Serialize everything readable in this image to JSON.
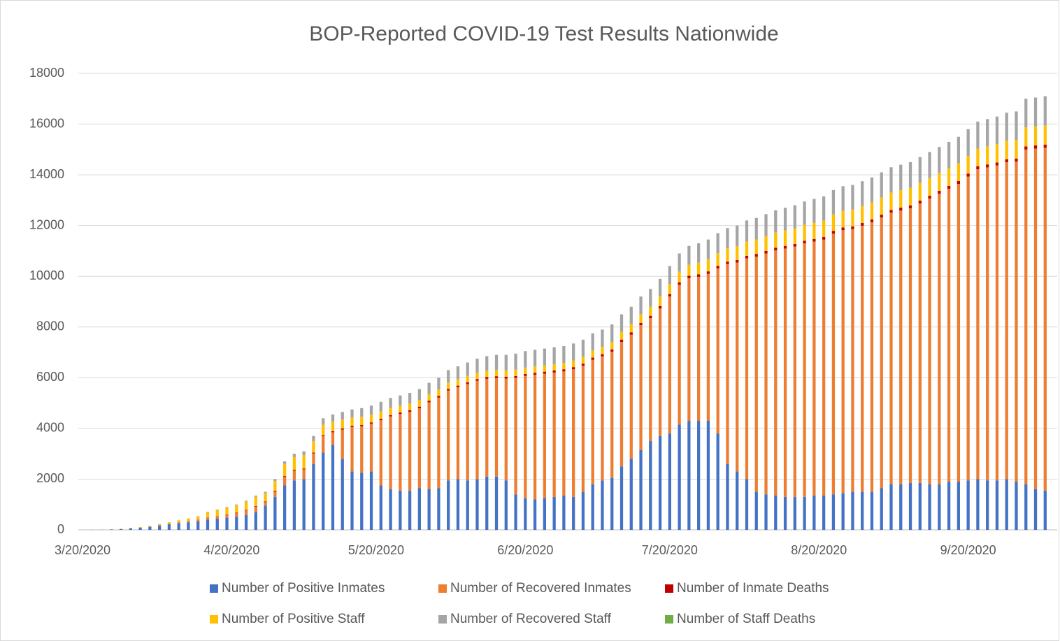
{
  "chart_data": {
    "type": "bar",
    "stacked": true,
    "title": "BOP-Reported COVID-19 Test Results Nationwide",
    "x": [
      "3/20/2020",
      "3/22/2020",
      "3/24/2020",
      "3/26/2020",
      "3/28/2020",
      "3/30/2020",
      "4/1/2020",
      "4/3/2020",
      "4/5/2020",
      "4/7/2020",
      "4/9/2020",
      "4/11/2020",
      "4/13/2020",
      "4/15/2020",
      "4/17/2020",
      "4/19/2020",
      "4/21/2020",
      "4/23/2020",
      "4/25/2020",
      "4/27/2020",
      "4/29/2020",
      "5/1/2020",
      "5/3/2020",
      "5/5/2020",
      "5/7/2020",
      "5/9/2020",
      "5/11/2020",
      "5/13/2020",
      "5/15/2020",
      "5/17/2020",
      "5/19/2020",
      "5/21/2020",
      "5/23/2020",
      "5/25/2020",
      "5/27/2020",
      "5/29/2020",
      "5/31/2020",
      "6/2/2020",
      "6/4/2020",
      "6/6/2020",
      "6/8/2020",
      "6/10/2020",
      "6/12/2020",
      "6/14/2020",
      "6/16/2020",
      "6/18/2020",
      "6/20/2020",
      "6/22/2020",
      "6/24/2020",
      "6/26/2020",
      "6/28/2020",
      "6/30/2020",
      "7/2/2020",
      "7/4/2020",
      "7/6/2020",
      "7/8/2020",
      "7/10/2020",
      "7/12/2020",
      "7/14/2020",
      "7/16/2020",
      "7/18/2020",
      "7/20/2020",
      "7/22/2020",
      "7/24/2020",
      "7/26/2020",
      "7/28/2020",
      "7/30/2020",
      "8/1/2020",
      "8/3/2020",
      "8/5/2020",
      "8/7/2020",
      "8/9/2020",
      "8/11/2020",
      "8/13/2020",
      "8/15/2020",
      "8/17/2020",
      "8/19/2020",
      "8/21/2020",
      "8/23/2020",
      "8/25/2020",
      "8/27/2020",
      "8/29/2020",
      "8/31/2020",
      "9/2/2020",
      "9/4/2020",
      "9/6/2020",
      "9/8/2020",
      "9/10/2020",
      "9/12/2020",
      "9/14/2020",
      "9/16/2020",
      "9/18/2020",
      "9/20/2020",
      "9/22/2020",
      "9/24/2020",
      "9/26/2020",
      "9/28/2020",
      "9/30/2020",
      "10/2/2020",
      "10/4/2020",
      "10/6/2020"
    ],
    "xticks": [
      "3/20/2020",
      "4/20/2020",
      "5/20/2020",
      "6/20/2020",
      "7/20/2020",
      "8/20/2020",
      "9/20/2020"
    ],
    "ylim": [
      0,
      18000
    ],
    "yticks": [
      0,
      2000,
      4000,
      6000,
      8000,
      10000,
      12000,
      14000,
      16000,
      18000
    ],
    "grid": true,
    "legend": "bottom",
    "series": [
      {
        "name": "Number of Positive Inmates",
        "color": "#4472c4",
        "values": [
          0,
          3,
          6,
          15,
          30,
          60,
          85,
          120,
          170,
          220,
          265,
          300,
          340,
          400,
          440,
          480,
          520,
          580,
          700,
          950,
          1300,
          1750,
          1950,
          2000,
          2600,
          3050,
          3350,
          2800,
          2300,
          2250,
          2300,
          1750,
          1600,
          1550,
          1550,
          1650,
          1600,
          1650,
          1950,
          2000,
          1950,
          2000,
          2100,
          2100,
          1950,
          1400,
          1250,
          1200,
          1250,
          1300,
          1350,
          1300,
          1500,
          1800,
          1950,
          2050,
          2500,
          2800,
          3150,
          3500,
          3700,
          3800,
          4150,
          4300,
          4300,
          4300,
          3800,
          2600,
          2300,
          2000,
          1500,
          1400,
          1350,
          1300,
          1300,
          1300,
          1350,
          1350,
          1400,
          1450,
          1500,
          1500,
          1500,
          1650,
          1800,
          1800,
          1850,
          1850,
          1800,
          1800,
          1900,
          1900,
          1950,
          2000,
          1950,
          1950,
          2000,
          1900,
          1800,
          1600,
          1550
        ]
      },
      {
        "name": "Number of Recovered Inmates",
        "color": "#ed7d31",
        "values": [
          0,
          0,
          0,
          0,
          0,
          0,
          0,
          6,
          12,
          15,
          23,
          32,
          46,
          80,
          92,
          114,
          136,
          189,
          217,
          145,
          203,
          341,
          390,
          388,
          415,
          642,
          498,
          1155,
          1752,
          1840,
          1887,
          2575,
          2873,
          3021,
          3104,
          3148,
          3431,
          3565,
          3543,
          3622,
          3800,
          3879,
          3857,
          3886,
          4014,
          4592,
          4819,
          4913,
          4907,
          4903,
          4899,
          5034,
          4970,
          4906,
          4891,
          4977,
          4913,
          4898,
          4924,
          4850,
          5027,
          5404,
          5513,
          5622,
          5681,
          5795,
          6509,
          7879,
          8243,
          8708,
          9272,
          9497,
          9671,
          9796,
          9870,
          9995,
          10019,
          10094,
          10281,
          10369,
          10357,
          10494,
          10632,
          10670,
          10707,
          10795,
          10833,
          11020,
          11263,
          11456,
          11548,
          11741,
          11984,
          12220,
          12344,
          12421,
          12497,
          12622,
          13198,
          13437,
          13516
        ]
      },
      {
        "name": "Number of Inmate Deaths",
        "color": "#c00000",
        "values": [
          0,
          0,
          0,
          0,
          0,
          0,
          1,
          2,
          3,
          5,
          7,
          8,
          9,
          10,
          13,
          16,
          19,
          21,
          23,
          25,
          27,
          29,
          30,
          32,
          35,
          38,
          42,
          45,
          48,
          50,
          52,
          54,
          56,
          58,
          60,
          61,
          63,
          64,
          66,
          67,
          69,
          70,
          72,
          73,
          75,
          77,
          80,
          81,
          82,
          83,
          84,
          85,
          86,
          87,
          88,
          89,
          90,
          91,
          92,
          93,
          94,
          95,
          96,
          97,
          98,
          99,
          100,
          100,
          101,
          101,
          102,
          102,
          103,
          103,
          104,
          104,
          105,
          105,
          106,
          106,
          107,
          108,
          108,
          109,
          110,
          110,
          111,
          112,
          112,
          113,
          114,
          114,
          115,
          116,
          117,
          118,
          119,
          120,
          121,
          122,
          123
        ]
      },
      {
        "name": "Number of Positive Staff",
        "color": "#ffc000",
        "values": [
          0,
          2,
          4,
          10,
          15,
          20,
          24,
          32,
          45,
          60,
          85,
          110,
          140,
          210,
          240,
          270,
          300,
          330,
          370,
          330,
          400,
          480,
          500,
          520,
          450,
          420,
          380,
          350,
          330,
          320,
          300,
          290,
          280,
          270,
          265,
          260,
          255,
          250,
          250,
          250,
          250,
          250,
          250,
          250,
          250,
          250,
          250,
          250,
          250,
          250,
          250,
          260,
          270,
          280,
          290,
          300,
          310,
          320,
          340,
          360,
          380,
          400,
          420,
          440,
          460,
          480,
          500,
          520,
          540,
          560,
          580,
          590,
          600,
          610,
          620,
          630,
          640,
          650,
          655,
          660,
          665,
          670,
          675,
          680,
          685,
          690,
          695,
          700,
          700,
          700,
          700,
          700,
          700,
          700,
          710,
          720,
          730,
          740,
          750,
          750,
          760
        ]
      },
      {
        "name": "Number of Recovered Staff",
        "color": "#a5a5a5",
        "values": [
          0,
          0,
          0,
          0,
          0,
          0,
          0,
          0,
          0,
          0,
          0,
          0,
          5,
          10,
          15,
          20,
          25,
          30,
          40,
          50,
          70,
          100,
          130,
          160,
          200,
          250,
          280,
          300,
          320,
          340,
          360,
          380,
          390,
          400,
          420,
          430,
          450,
          470,
          490,
          510,
          530,
          550,
          570,
          590,
          610,
          630,
          650,
          655,
          660,
          663,
          666,
          670,
          673,
          676,
          680,
          683,
          686,
          690,
          693,
          696,
          698,
          700,
          720,
          740,
          760,
          775,
          790,
          800,
          815,
          830,
          845,
          860,
          875,
          890,
          905,
          920,
          935,
          950,
          957,
          964,
          970,
          977,
          984,
          990,
          997,
          1004,
          1010,
          1017,
          1024,
          1030,
          1037,
          1044,
          1050,
          1063,
          1077,
          1090,
          1103,
          1117,
          1130,
          1140,
          1150
        ]
      },
      {
        "name": "Number of Staff Deaths",
        "color": "#70ad47",
        "values": [
          0,
          0,
          0,
          0,
          0,
          0,
          0,
          0,
          0,
          0,
          0,
          0,
          0,
          0,
          0,
          0,
          0,
          0,
          0,
          0,
          0,
          0,
          0,
          0,
          0,
          0,
          0,
          0,
          0,
          0,
          1,
          1,
          1,
          1,
          1,
          1,
          1,
          1,
          1,
          1,
          1,
          1,
          1,
          1,
          1,
          1,
          1,
          1,
          1,
          1,
          1,
          1,
          1,
          1,
          1,
          1,
          1,
          1,
          1,
          1,
          1,
          1,
          1,
          1,
          1,
          1,
          1,
          1,
          1,
          1,
          1,
          1,
          1,
          1,
          1,
          1,
          1,
          1,
          1,
          1,
          1,
          1,
          1,
          1,
          1,
          1,
          1,
          1,
          1,
          1,
          1,
          1,
          1,
          1,
          1,
          1,
          1,
          1,
          1,
          1,
          1
        ]
      }
    ]
  }
}
